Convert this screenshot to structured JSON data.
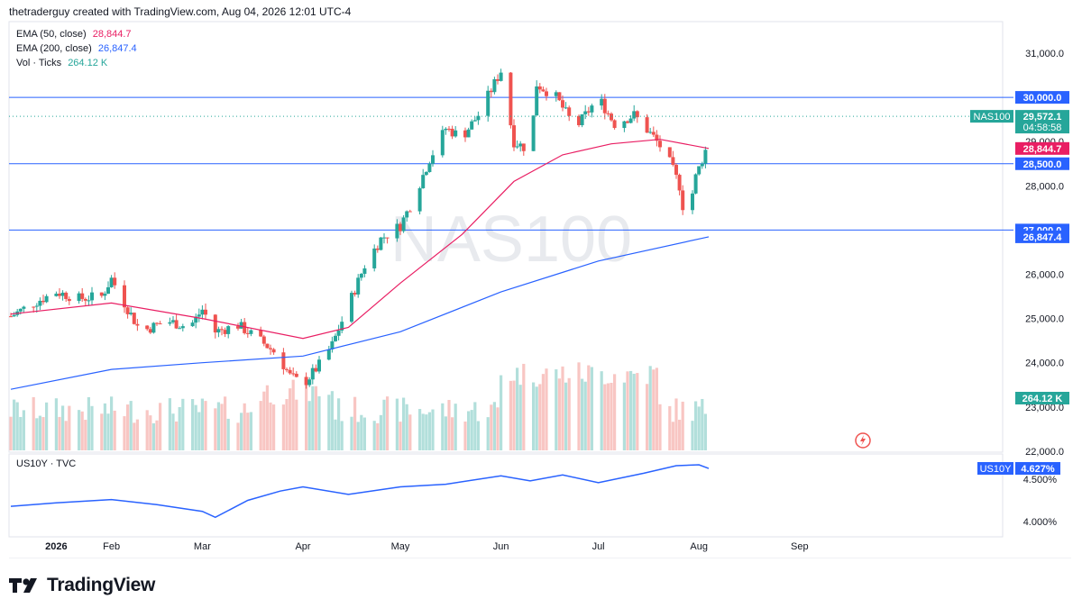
{
  "header": {
    "attribution": "thetraderguy created with TradingView.com, Aug 04, 2026 12:01 UTC-4"
  },
  "indicators": [
    {
      "name": "EMA (50, close)",
      "value": "28,844.7",
      "color": "#e91e63"
    },
    {
      "name": "EMA (200, close)",
      "value": "26,847.4",
      "color": "#2962ff"
    },
    {
      "name": "Vol · Ticks",
      "value": "264.12 K",
      "color": "#26a69a"
    }
  ],
  "lower_pane": {
    "label": "US10Y · TVC"
  },
  "watermark": "NAS100",
  "footer": {
    "brand": "TradingView"
  },
  "colors": {
    "up": "#26a69a",
    "down": "#ef5350",
    "ema50": "#e91e63",
    "ema200": "#2962ff",
    "hline": "#2962ff",
    "vol_up": "#b2dfdb",
    "vol_down": "#f8c6c3",
    "us10y": "#2962ff"
  },
  "chart_data": [
    {
      "type": "candlestick",
      "symbol": "NAS100",
      "y_axis_ticks": [
        "31,000.0",
        "29,000.0",
        "28,000.0",
        "26,000.0",
        "25,000.0",
        "24,000.0",
        "23,000.0",
        "22,000.0"
      ],
      "x_axis_labels": [
        "2026",
        "Feb",
        "Mar",
        "Apr",
        "May",
        "Jun",
        "Jul",
        "Aug",
        "Sep"
      ],
      "ylim": [
        21900,
        31500
      ],
      "horizontal_lines": [
        30000,
        28500,
        27000
      ],
      "price_labels": [
        {
          "text": "30,000.0",
          "kind": "hline"
        },
        {
          "text": "29,572.1",
          "kind": "last",
          "symbol": "NAS100",
          "countdown": "04:58:58"
        },
        {
          "text": "28,844.7",
          "kind": "ema50"
        },
        {
          "text": "28,500.0",
          "kind": "hline"
        },
        {
          "text": "27,000.0",
          "kind": "hline"
        },
        {
          "text": "26,847.4",
          "kind": "ema200"
        },
        {
          "text": "264.12 K",
          "kind": "volume"
        }
      ],
      "close_path": [
        [
          "Jan 01",
          25050
        ],
        [
          "Jan 08",
          25350
        ],
        [
          "Jan 15",
          25600
        ],
        [
          "Jan 22",
          25450
        ],
        [
          "Jan 29",
          25500
        ],
        [
          "Feb 01",
          25900
        ],
        [
          "Feb 05",
          25350
        ],
        [
          "Feb 10",
          24700
        ],
        [
          "Feb 18",
          24950
        ],
        [
          "Feb 25",
          24800
        ],
        [
          "Mar 01",
          25200
        ],
        [
          "Mar 05",
          24700
        ],
        [
          "Mar 12",
          24850
        ],
        [
          "Mar 18",
          24550
        ],
        [
          "Mar 24",
          24200
        ],
        [
          "Mar 28",
          23700
        ],
        [
          "Apr 01",
          23500
        ],
        [
          "Apr 06",
          23950
        ],
        [
          "Apr 10",
          24400
        ],
        [
          "Apr 15",
          25300
        ],
        [
          "Apr 20",
          26200
        ],
        [
          "Apr 25",
          26800
        ],
        [
          "May 01",
          27100
        ],
        [
          "May 05",
          27700
        ],
        [
          "May 10",
          28600
        ],
        [
          "May 15",
          29300
        ],
        [
          "May 20",
          29100
        ],
        [
          "May 25",
          29600
        ],
        [
          "Jun 01",
          30600
        ],
        [
          "Jun 05",
          29000
        ],
        [
          "Jun 10",
          28800
        ],
        [
          "Jun 12",
          30300
        ],
        [
          "Jun 18",
          30000
        ],
        [
          "Jun 24",
          29300
        ],
        [
          "Jul 01",
          30000
        ],
        [
          "Jul 06",
          29400
        ],
        [
          "Jul 12",
          29600
        ],
        [
          "Jul 18",
          29100
        ],
        [
          "Jul 22",
          28700
        ],
        [
          "Jul 26",
          28000
        ],
        [
          "Jul 28",
          27100
        ],
        [
          "Jul 31",
          28200
        ],
        [
          "Aug 03",
          28800
        ],
        [
          "Aug 04",
          29572.1
        ]
      ],
      "ema50_path": [
        [
          "Jan 01",
          25100
        ],
        [
          "Feb 01",
          25350
        ],
        [
          "Mar 01",
          25000
        ],
        [
          "Apr 01",
          24550
        ],
        [
          "Apr 15",
          24800
        ],
        [
          "May 01",
          25800
        ],
        [
          "May 20",
          26900
        ],
        [
          "Jun 05",
          28100
        ],
        [
          "Jun 20",
          28700
        ],
        [
          "Jul 05",
          28950
        ],
        [
          "Jul 20",
          29050
        ],
        [
          "Aug 04",
          28844.7
        ]
      ],
      "ema200_path": [
        [
          "Jan 01",
          23400
        ],
        [
          "Feb 01",
          23850
        ],
        [
          "Mar 01",
          24000
        ],
        [
          "Apr 01",
          24150
        ],
        [
          "May 01",
          24700
        ],
        [
          "Jun 01",
          25600
        ],
        [
          "Jul 01",
          26300
        ],
        [
          "Aug 04",
          26847.4
        ]
      ]
    },
    {
      "type": "line",
      "symbol": "US10Y",
      "y_axis_ticks": [
        "4.500%",
        "4.000%"
      ],
      "last_label": {
        "symbol": "US10Y",
        "text": "4.627%"
      },
      "values": [
        [
          "Jan 01",
          4.18
        ],
        [
          "Jan 15",
          4.22
        ],
        [
          "Feb 01",
          4.26
        ],
        [
          "Feb 15",
          4.2
        ],
        [
          "Mar 01",
          4.12
        ],
        [
          "Mar 05",
          4.05
        ],
        [
          "Mar 15",
          4.25
        ],
        [
          "Mar 25",
          4.36
        ],
        [
          "Apr 01",
          4.41
        ],
        [
          "Apr 15",
          4.32
        ],
        [
          "May 01",
          4.41
        ],
        [
          "May 15",
          4.44
        ],
        [
          "Jun 01",
          4.54
        ],
        [
          "Jun 10",
          4.48
        ],
        [
          "Jun 20",
          4.55
        ],
        [
          "Jul 01",
          4.46
        ],
        [
          "Jul 15",
          4.57
        ],
        [
          "Jul 25",
          4.66
        ],
        [
          "Aug 01",
          4.67
        ],
        [
          "Aug 04",
          4.627
        ]
      ]
    }
  ]
}
